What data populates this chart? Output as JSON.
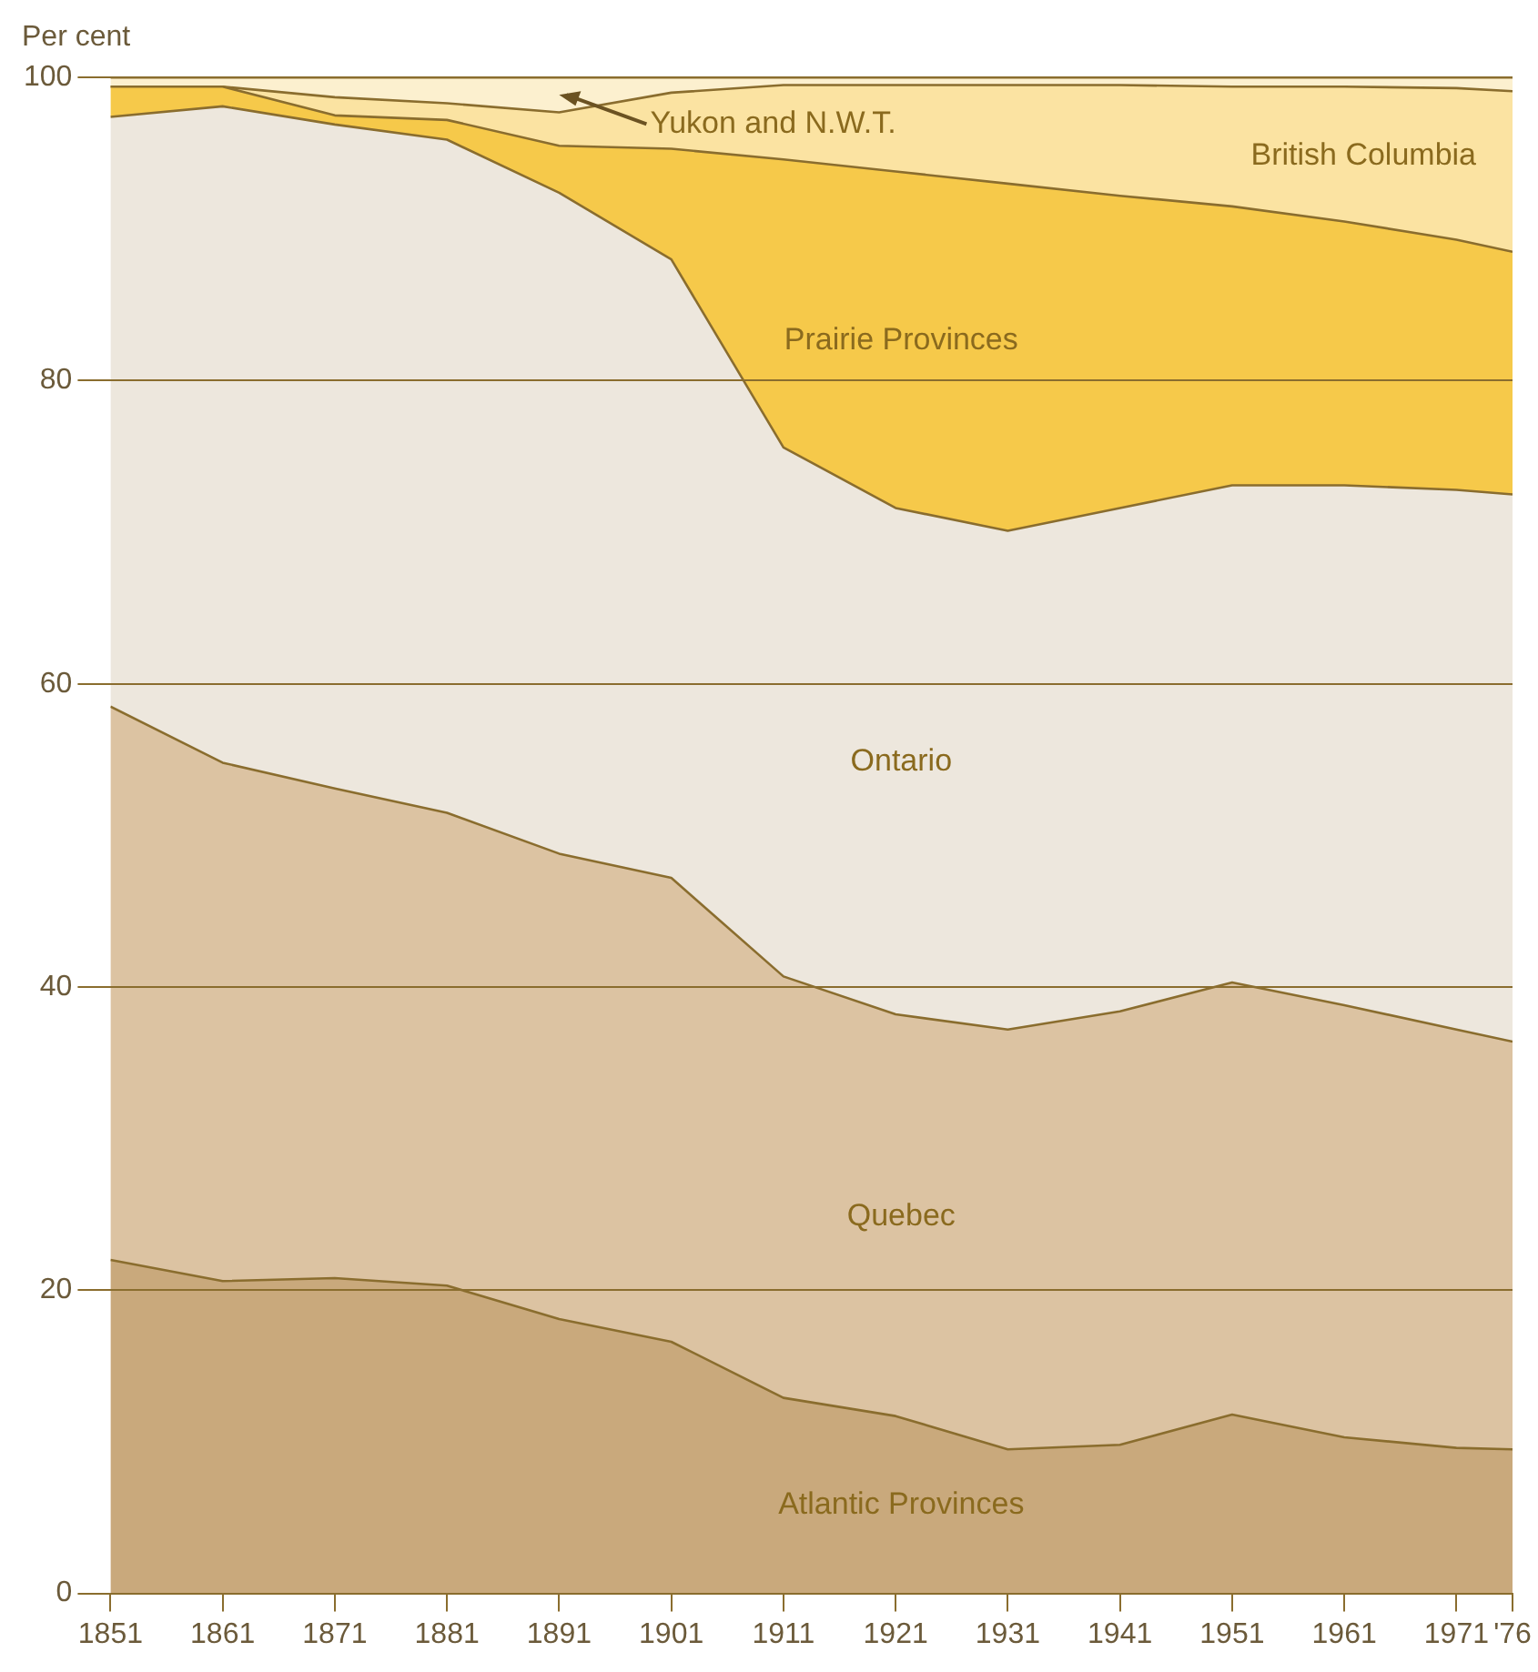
{
  "chart_data": {
    "type": "area",
    "stacked": true,
    "ylabel": "Per cent",
    "x": [
      1851,
      1861,
      1871,
      1881,
      1891,
      1901,
      1911,
      1921,
      1931,
      1941,
      1951,
      1961,
      1971,
      1976
    ],
    "xlim": [
      1851,
      1976
    ],
    "xticks": [
      1851,
      1861,
      1871,
      1881,
      1891,
      1901,
      1911,
      1921,
      1931,
      1941,
      1951,
      1961,
      1971,
      {
        "value": 1976,
        "label": "'76"
      }
    ],
    "ylim": [
      0,
      100
    ],
    "yticks": [
      0,
      20,
      40,
      60,
      80,
      100
    ],
    "grid": "y",
    "legend": false,
    "series": [
      {
        "name": "Atlantic Provinces",
        "color": "#c9a97c",
        "values": [
          22.0,
          20.6,
          20.8,
          20.3,
          18.1,
          16.6,
          12.9,
          11.7,
          9.5,
          9.8,
          11.8,
          10.3,
          9.6,
          9.5
        ]
      },
      {
        "name": "Quebec",
        "color": "#dcc3a2",
        "values": [
          36.5,
          34.2,
          32.3,
          31.2,
          30.7,
          30.6,
          27.8,
          26.5,
          27.7,
          28.6,
          28.5,
          28.5,
          27.6,
          26.9
        ]
      },
      {
        "name": "Ontario",
        "color": "#ede7dd",
        "values": [
          38.9,
          43.3,
          43.8,
          44.4,
          43.6,
          40.8,
          34.9,
          33.4,
          32.9,
          33.2,
          32.8,
          34.3,
          35.6,
          36.1
        ]
      },
      {
        "name": "Prairie Provinces",
        "color": "#f6c94a",
        "values": [
          2.0,
          1.3,
          0.6,
          1.3,
          3.1,
          7.3,
          19.0,
          22.2,
          22.9,
          20.6,
          18.4,
          17.4,
          16.5,
          16.0
        ]
      },
      {
        "name": "British Columbia",
        "color": "#fbe3a2",
        "values": [
          0,
          0,
          1.2,
          1.1,
          2.2,
          3.7,
          4.9,
          5.7,
          6.5,
          7.3,
          7.9,
          8.9,
          10.0,
          10.6
        ]
      },
      {
        "name": "Yukon and N.W.T.",
        "color": "#fcf0cf",
        "values": [
          0.6,
          0.6,
          1.3,
          1.7,
          2.3,
          1.0,
          0.5,
          0.5,
          0.5,
          0.5,
          0.6,
          0.6,
          0.7,
          0.9
        ]
      }
    ]
  }
}
